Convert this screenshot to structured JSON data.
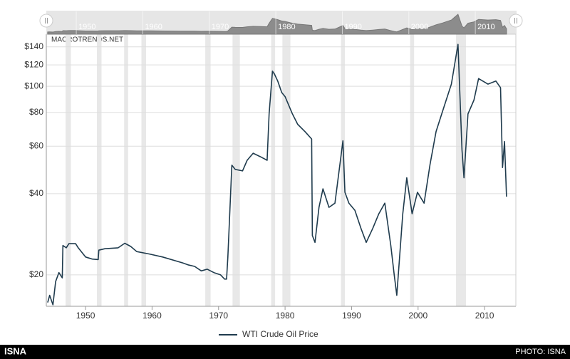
{
  "chart_data": {
    "type": "line",
    "watermark": "MACROTRENDS.NET",
    "x": [
      1944.3,
      1944.6,
      1945.1,
      1945.5,
      1946.0,
      1946.5,
      1946.6,
      1947.1,
      1947.5,
      1948.5,
      1948.9,
      1950.0,
      1951.0,
      1951.9,
      1952.0,
      1952.9,
      1954.9,
      1955.9,
      1956.8,
      1957.7,
      1959.6,
      1961.6,
      1964.5,
      1965.4,
      1966.4,
      1967.4,
      1968.3,
      1969.3,
      1970.3,
      1970.9,
      1971.2,
      1971.4,
      1972.0,
      1972.5,
      1973.6,
      1974.3,
      1975.2,
      1976.3,
      1977.3,
      1977.6,
      1978.1,
      1978.4,
      1978.9,
      1979.5,
      1980.0,
      1981.1,
      1981.9,
      1983.0,
      1984.0,
      1984.1,
      1984.5,
      1985.1,
      1985.7,
      1986.6,
      1987.5,
      1988.7,
      1989.0,
      1989.6,
      1990.5,
      1991.4,
      1992.2,
      1993.2,
      1994.1,
      1995.0,
      1995.9,
      1996.4,
      1996.8,
      1997.7,
      1998.3,
      1999.1,
      1999.9,
      2000.9,
      2001.8,
      2002.7,
      2003.7,
      2005.0,
      2006.0,
      2006.6,
      2006.9,
      2007.5,
      2008.4,
      2009.1,
      2010.5,
      2011.7,
      2012.4,
      2012.7,
      2013.0,
      2013.3
    ],
    "series": [
      {
        "name": "WTI Crude Oil Price",
        "color": "#1f3b4d",
        "values": [
          15.8,
          16.8,
          15.5,
          18.9,
          20.4,
          19.5,
          25.7,
          25.2,
          26.1,
          26.1,
          25.2,
          23.3,
          22.9,
          22.8,
          24.7,
          25.0,
          25.2,
          26.2,
          25.5,
          24.4,
          23.9,
          23.3,
          22.2,
          21.8,
          21.5,
          20.7,
          21.0,
          20.4,
          20.0,
          19.3,
          19.3,
          23.3,
          51.0,
          49.2,
          48.6,
          53.2,
          56.5,
          54.8,
          53.2,
          79,
          113.8,
          111,
          104.6,
          94.8,
          91.6,
          79,
          72.3,
          67.9,
          63.8,
          28.0,
          26.4,
          35.6,
          41.7,
          35.6,
          36.9,
          62.8,
          40.5,
          36.9,
          34.7,
          29.8,
          26.4,
          29.8,
          33.7,
          36.9,
          25.7,
          20.1,
          16.8,
          33.7,
          45.8,
          33.7,
          40.5,
          36.9,
          51.4,
          67.9,
          81,
          101.9,
          143,
          58.2,
          45.8,
          79,
          88.9,
          106.8,
          101.9,
          104.6,
          98.8,
          50.0,
          62.4,
          39.0
        ]
      }
    ],
    "xlim": [
      1944.1,
      2014.7
    ],
    "xticks": [
      1950,
      1960,
      1970,
      1980,
      1990,
      2000,
      2010
    ],
    "ylim": [
      15.3,
      156
    ],
    "ylog": true,
    "yticks": [
      {
        "value": 20,
        "label": "$20"
      },
      {
        "value": 40,
        "label": "$40"
      },
      {
        "value": 60,
        "label": "$60"
      },
      {
        "value": 80,
        "label": "$80"
      },
      {
        "value": 100,
        "label": "$100"
      },
      {
        "value": 120,
        "label": "$120"
      },
      {
        "value": 140,
        "label": "$140"
      }
    ],
    "grid": true,
    "legend": "bottom",
    "recessions": [
      [
        1947.0,
        1947.8
      ],
      [
        1951.7,
        1952.4
      ],
      [
        1955.8,
        1956.4
      ],
      [
        1958.4,
        1959.1
      ],
      [
        1968.0,
        1968.8
      ],
      [
        1972.1,
        1973.2
      ],
      [
        1977.9,
        1978.5
      ],
      [
        1979.6,
        1980.8
      ],
      [
        1988.4,
        1989.0
      ],
      [
        1998.8,
        1999.4
      ],
      [
        2005.7,
        2007.2
      ]
    ]
  },
  "footer": {
    "left": "ISNA",
    "right": "PHOTO: ISNA"
  }
}
